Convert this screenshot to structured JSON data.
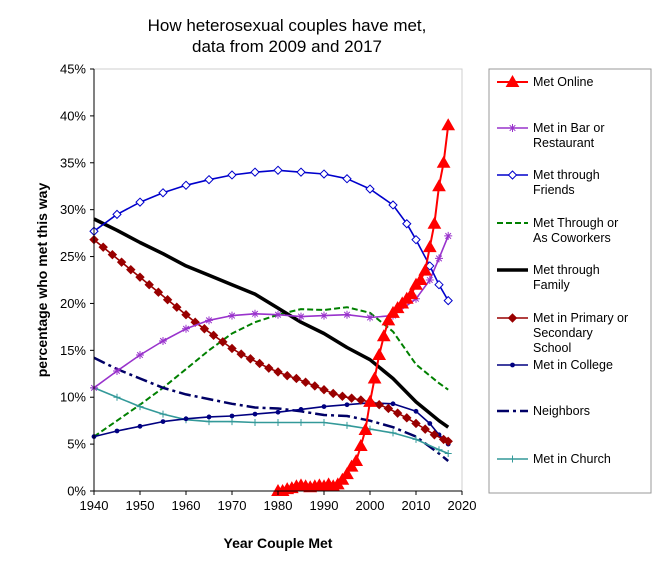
{
  "chart_data": {
    "type": "line",
    "title": [
      "How heterosexual couples have met,",
      "data from 2009 and 2017"
    ],
    "xlabel": "Year Couple Met",
    "ylabel": "percentage who met this way",
    "xlim": [
      1940,
      2020
    ],
    "ylim": [
      0,
      45
    ],
    "x_ticks": [
      "1940",
      "1950",
      "1960",
      "1970",
      "1980",
      "1990",
      "2000",
      "2010",
      "2020"
    ],
    "y_ticks": [
      "0%",
      "5%",
      "10%",
      "15%",
      "20%",
      "25%",
      "30%",
      "35%",
      "40%",
      "45%"
    ],
    "grid": false,
    "legend_position": "right",
    "series": [
      {
        "name": "Met Online",
        "color": "#ff0000",
        "marker": "triangle",
        "x": [
          1980,
          1981,
          1982,
          1983,
          1984,
          1985,
          1986,
          1987,
          1988,
          1989,
          1990,
          1991,
          1992,
          1993,
          1994,
          1995,
          1996,
          1997,
          1998,
          1999,
          2000,
          2001,
          2002,
          2003,
          2004,
          2005,
          2006,
          2007,
          2008,
          2009,
          2010,
          2011,
          2012,
          2013,
          2014,
          2015,
          2016,
          2017
        ],
        "y": [
          0.0,
          0.0,
          0.2,
          0.3,
          0.5,
          0.6,
          0.5,
          0.4,
          0.5,
          0.6,
          0.5,
          0.7,
          0.5,
          0.7,
          1.2,
          1.8,
          2.6,
          3.2,
          4.8,
          6.5,
          9.5,
          12.0,
          14.5,
          16.5,
          18.2,
          19.0,
          19.5,
          20.0,
          20.5,
          21.0,
          22.0,
          22.5,
          23.5,
          26.0,
          28.5,
          32.5,
          35.0,
          39.0
        ]
      },
      {
        "name": "Met in Bar or Restaurant",
        "color": "#9933cc",
        "marker": "star",
        "x": [
          1940,
          1945,
          1950,
          1955,
          1960,
          1965,
          1970,
          1975,
          1980,
          1985,
          1990,
          1995,
          2000,
          2005,
          2010,
          2013,
          2015,
          2017
        ],
        "y": [
          11.0,
          12.8,
          14.5,
          16.0,
          17.3,
          18.2,
          18.7,
          18.9,
          18.8,
          18.6,
          18.7,
          18.8,
          18.5,
          18.7,
          20.5,
          22.5,
          24.8,
          27.2
        ]
      },
      {
        "name": "Met through Friends",
        "color": "#0000cc",
        "marker": "diamond-open",
        "x": [
          1940,
          1945,
          1950,
          1955,
          1960,
          1965,
          1970,
          1975,
          1980,
          1985,
          1990,
          1995,
          2000,
          2005,
          2008,
          2010,
          2013,
          2015,
          2017
        ],
        "y": [
          27.7,
          29.5,
          30.8,
          31.8,
          32.6,
          33.2,
          33.7,
          34.0,
          34.2,
          34.0,
          33.8,
          33.3,
          32.2,
          30.5,
          28.5,
          26.8,
          24.0,
          22.0,
          20.3
        ]
      },
      {
        "name": "Met Through or As Coworkers",
        "color": "#008000",
        "marker": "dashed",
        "x": [
          1940,
          1945,
          1950,
          1955,
          1960,
          1965,
          1970,
          1975,
          1980,
          1985,
          1990,
          1995,
          2000,
          2005,
          2010,
          2015,
          2017
        ],
        "y": [
          5.8,
          7.5,
          9.2,
          11.0,
          13.0,
          15.0,
          16.8,
          18.0,
          18.8,
          19.4,
          19.3,
          19.6,
          19.0,
          17.0,
          13.5,
          11.5,
          10.8
        ]
      },
      {
        "name": "Met through Family",
        "color": "#000000",
        "marker": "thick",
        "x": [
          1940,
          1945,
          1950,
          1955,
          1960,
          1965,
          1970,
          1975,
          1980,
          1985,
          1990,
          1995,
          2000,
          2005,
          2010,
          2015,
          2017
        ],
        "y": [
          29.0,
          27.8,
          26.5,
          25.3,
          24.0,
          23.0,
          22.0,
          21.0,
          19.5,
          18.0,
          16.8,
          15.3,
          14.0,
          12.0,
          9.5,
          7.5,
          6.8
        ]
      },
      {
        "name": "Met in Primary or Secondary School",
        "color": "#990000",
        "marker": "diamond",
        "x": [
          1940,
          1942,
          1944,
          1946,
          1948,
          1950,
          1952,
          1954,
          1956,
          1958,
          1960,
          1962,
          1964,
          1966,
          1968,
          1970,
          1972,
          1974,
          1976,
          1978,
          1980,
          1982,
          1984,
          1986,
          1988,
          1990,
          1992,
          1994,
          1996,
          1998,
          2000,
          2002,
          2004,
          2006,
          2008,
          2010,
          2012,
          2014,
          2016,
          2017
        ],
        "y": [
          26.8,
          26.0,
          25.2,
          24.4,
          23.6,
          22.8,
          22.0,
          21.2,
          20.4,
          19.6,
          18.8,
          18.0,
          17.3,
          16.6,
          15.9,
          15.2,
          14.6,
          14.1,
          13.6,
          13.1,
          12.7,
          12.3,
          12.0,
          11.6,
          11.2,
          10.8,
          10.4,
          10.1,
          9.9,
          9.7,
          9.5,
          9.2,
          8.8,
          8.3,
          7.8,
          7.2,
          6.6,
          6.0,
          5.5,
          5.3
        ]
      },
      {
        "name": "Met in College",
        "color": "#000080",
        "marker": "dot",
        "x": [
          1940,
          1945,
          1950,
          1955,
          1960,
          1965,
          1970,
          1975,
          1980,
          1985,
          1990,
          1995,
          2000,
          2005,
          2010,
          2013,
          2015,
          2017
        ],
        "y": [
          5.8,
          6.4,
          6.9,
          7.4,
          7.7,
          7.9,
          8.0,
          8.2,
          8.4,
          8.7,
          9.0,
          9.2,
          9.4,
          9.3,
          8.5,
          7.2,
          6.0,
          5.0
        ]
      },
      {
        "name": "Neighbors",
        "color": "#000066",
        "marker": "dashdot",
        "x": [
          1940,
          1945,
          1950,
          1955,
          1960,
          1965,
          1970,
          1975,
          1980,
          1985,
          1990,
          1995,
          2000,
          2005,
          2010,
          2015,
          2017
        ],
        "y": [
          14.2,
          13.0,
          12.0,
          11.0,
          10.3,
          9.8,
          9.3,
          8.9,
          8.8,
          8.5,
          8.1,
          8.0,
          7.5,
          6.8,
          5.8,
          4.0,
          3.2
        ]
      },
      {
        "name": "Met in Church",
        "color": "#339999",
        "marker": "plus",
        "x": [
          1940,
          1945,
          1950,
          1955,
          1960,
          1965,
          1970,
          1975,
          1980,
          1985,
          1990,
          1995,
          2000,
          2005,
          2010,
          2015,
          2017
        ],
        "y": [
          11.0,
          10.0,
          9.0,
          8.2,
          7.6,
          7.4,
          7.4,
          7.3,
          7.3,
          7.3,
          7.3,
          7.0,
          6.6,
          6.2,
          5.5,
          4.4,
          4.0
        ]
      }
    ],
    "legend_labels": [
      [
        "Met Online"
      ],
      [
        "Met in Bar or",
        "Restaurant"
      ],
      [
        "Met through",
        "Friends"
      ],
      [
        "Met Through or",
        "As Coworkers"
      ],
      [
        "Met through",
        "Family"
      ],
      [
        "Met in Primary or",
        "Secondary",
        "School"
      ],
      [
        "Met in College"
      ],
      [
        "Neighbors"
      ],
      [
        "Met in Church"
      ]
    ]
  }
}
